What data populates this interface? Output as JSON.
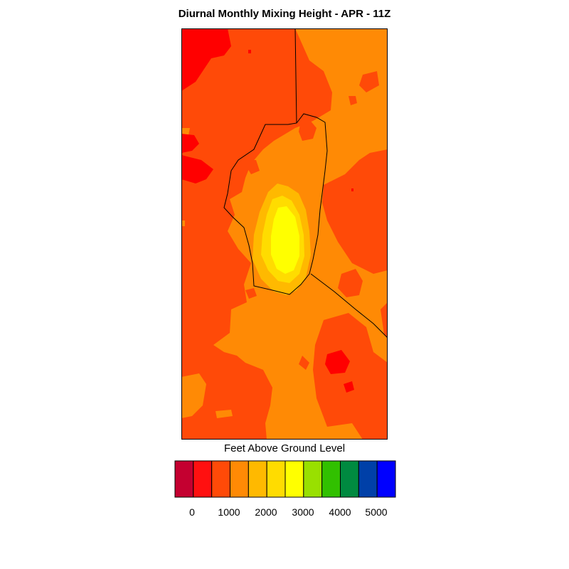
{
  "title": "Diurnal Monthly Mixing Height - APR - 11Z",
  "colorbar": {
    "title": "Feet Above Ground Level",
    "colors": [
      "#c40030",
      "#ff1010",
      "#ff4a08",
      "#ff8a05",
      "#ffb900",
      "#ffdc00",
      "#ffff00",
      "#99e000",
      "#31c000",
      "#008a40",
      "#0040a8",
      "#0000ff"
    ],
    "tick_labels": [
      "0",
      "1000",
      "2000",
      "3000",
      "4000",
      "5000"
    ]
  },
  "map": {
    "fill_colors": {
      "below_0": "#ff0000",
      "0_500": "#ff4a08",
      "500_1000": "#ff8a05",
      "1000_1500": "#ffb900",
      "1500_2000": "#ffdc00",
      "2000_2500": "#ffff00"
    }
  }
}
